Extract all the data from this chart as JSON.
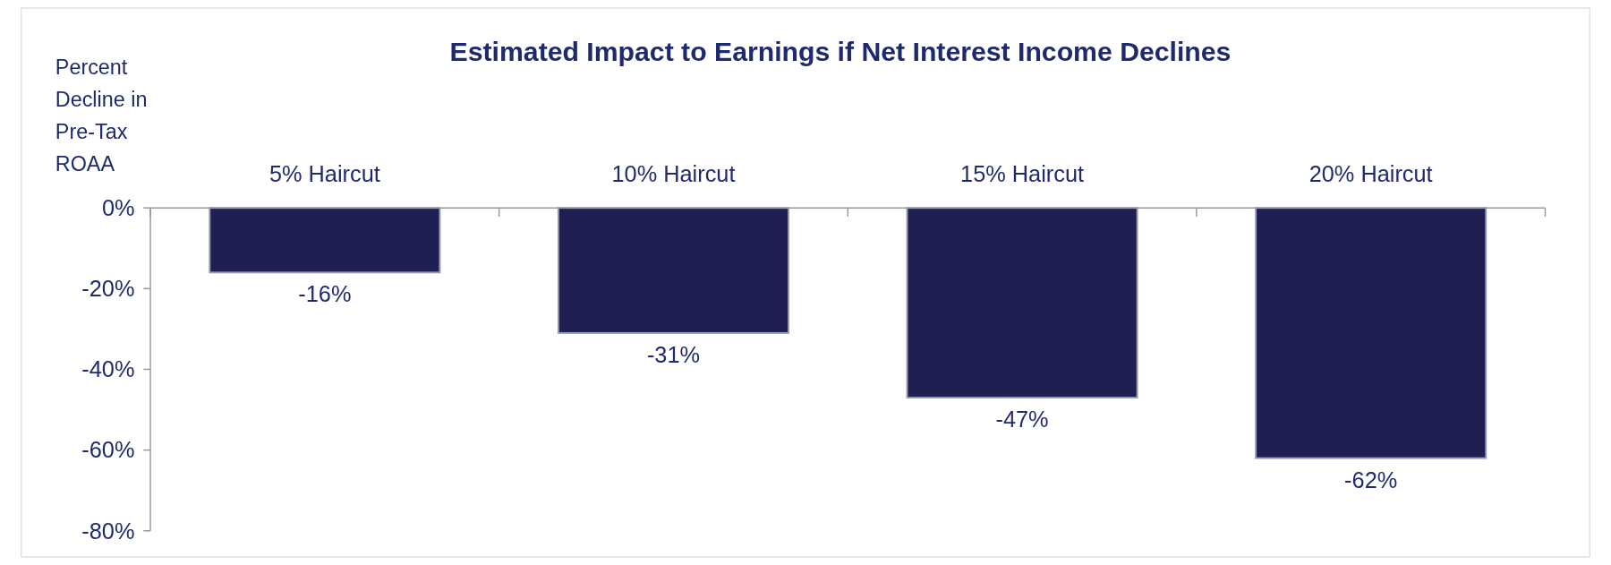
{
  "chart_data": {
    "type": "bar",
    "title": "Estimated Impact to Earnings if Net Interest Income Declines",
    "ylabel": "Percent Decline in Pre-Tax ROAA",
    "categories": [
      "5% Haircut",
      "10% Haircut",
      "15% Haircut",
      "20% Haircut"
    ],
    "values": [
      -16,
      -31,
      -47,
      -62
    ],
    "value_labels": [
      "-16%",
      "-31%",
      "-47%",
      "-62%"
    ],
    "color": "#1f1f54",
    "ylim": [
      -80,
      0
    ],
    "yticks": [
      {
        "value": 0,
        "label": "0%"
      },
      {
        "value": -20,
        "label": "-20%"
      },
      {
        "value": -40,
        "label": "-40%"
      },
      {
        "value": -60,
        "label": "-60%"
      },
      {
        "value": -80,
        "label": "-80%"
      }
    ],
    "grid": false
  }
}
